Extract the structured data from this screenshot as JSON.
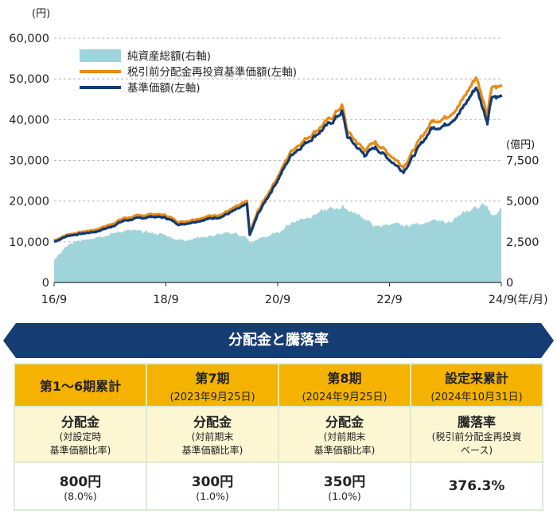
{
  "chart_data": {
    "type": "line",
    "title": "",
    "left_unit": "(円)",
    "right_unit": "(億円)",
    "x_unit": "(年/月)",
    "x_ticks": [
      "16/9",
      "18/9",
      "20/9",
      "22/9",
      "24/9"
    ],
    "y_left": {
      "ylim": [
        0,
        60000
      ],
      "ticks": [
        "0",
        "10,000",
        "20,000",
        "30,000",
        "40,000",
        "50,000",
        "60,000"
      ]
    },
    "y_right": {
      "ylim": [
        0,
        15000
      ],
      "ticks": [
        "0",
        "2,500",
        "5,000",
        "7,500"
      ]
    },
    "grid": "dashed-horizontal",
    "legend_position": "top-left",
    "legend": [
      "純資産総額(右軸)",
      "税引前分配金再投資基準価額(左軸)",
      "基準価額(左軸)"
    ],
    "colors": {
      "nav_area": "#9fd4da",
      "reinvest": "#ea8a12",
      "base": "#123a73"
    },
    "x": [
      2016.75,
      2017.0,
      2017.5,
      2017.75,
      2018.0,
      2018.5,
      2018.75,
      2019.0,
      2019.5,
      2019.75,
      2020.0,
      2020.2,
      2020.25,
      2020.4,
      2020.75,
      2021.0,
      2021.5,
      2021.75,
      2021.9,
      2022.0,
      2022.3,
      2022.5,
      2022.75,
      2023.0,
      2023.5,
      2023.75,
      2024.0,
      2024.3,
      2024.5,
      2024.58,
      2024.75
    ],
    "series": [
      {
        "name": "純資産総額(右軸)",
        "axis": "right",
        "values": [
          1400,
          2300,
          2850,
          2950,
          3200,
          3050,
          2900,
          2600,
          2850,
          2950,
          3050,
          2700,
          2400,
          2650,
          3050,
          3700,
          4300,
          4550,
          4650,
          4500,
          3950,
          3400,
          3600,
          3450,
          3800,
          3650,
          4050,
          4650,
          4800,
          4100,
          4550
        ]
      },
      {
        "name": "税引前分配金再投資基準価額(左軸)",
        "axis": "left",
        "values": [
          10300,
          11800,
          13000,
          14200,
          15800,
          16800,
          16500,
          14800,
          16200,
          16800,
          18500,
          19800,
          12100,
          17600,
          26000,
          32500,
          38000,
          41000,
          43500,
          37000,
          32500,
          34500,
          31500,
          28500,
          39500,
          40500,
          43500,
          50500,
          41500,
          48500,
          48000
        ]
      },
      {
        "name": "基準価額(左軸)",
        "axis": "left",
        "values": [
          10000,
          11500,
          12500,
          13600,
          15200,
          16200,
          15900,
          14200,
          15600,
          16200,
          17800,
          19100,
          11600,
          16900,
          25200,
          31500,
          37000,
          39800,
          42000,
          35800,
          31300,
          33200,
          30200,
          27300,
          37800,
          38700,
          41500,
          48000,
          39500,
          46000,
          45500
        ]
      }
    ]
  },
  "distribution": {
    "title": "分配金と騰落率",
    "columns": [
      {
        "heading": "第1〜6期累計",
        "date": "",
        "label": "分配金",
        "note1": "(対設定時",
        "note2": "基準価額比率)",
        "value": "800円",
        "value_sub": "(8.0%)"
      },
      {
        "heading": "第7期",
        "date": "(2023年9月25日)",
        "label": "分配金",
        "note1": "(対前期末",
        "note2": "基準価額比率)",
        "value": "300円",
        "value_sub": "(1.0%)"
      },
      {
        "heading": "第8期",
        "date": "(2024年9月25日)",
        "label": "分配金",
        "note1": "(対前期末",
        "note2": "基準価額比率)",
        "value": "350円",
        "value_sub": "(1.0%)"
      },
      {
        "heading": "設定来累計",
        "date": "(2024年10月31日)",
        "label": "騰落率",
        "note1": "(税引前分配金再投資",
        "note2": "ベース)",
        "value": "376.3%",
        "value_sub": ""
      }
    ]
  }
}
